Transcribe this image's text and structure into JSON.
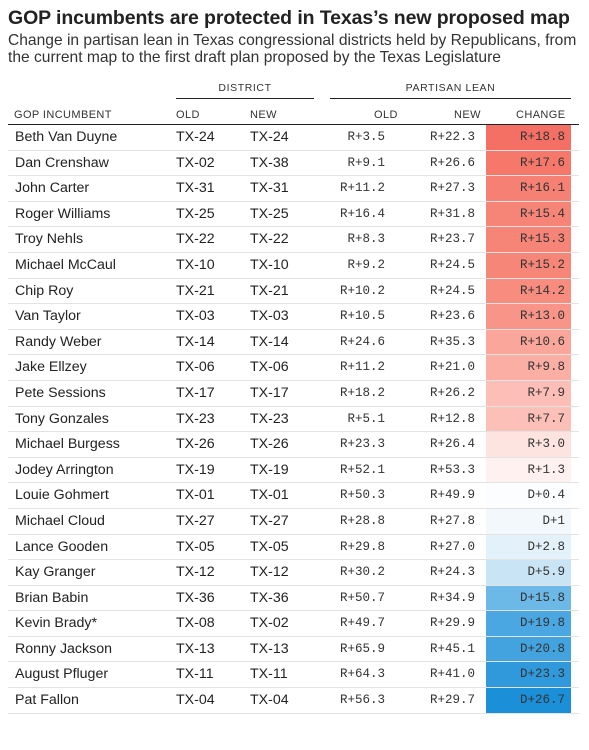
{
  "title": "GOP incumbents are protected in Texas’s new proposed map",
  "subtitle": "Change in partisan lean in Texas congressional districts held by Republicans, from the current map to the first draft plan proposed by the Texas Legislature",
  "groups": {
    "district": "DISTRICT",
    "partisan_lean": "PARTISAN LEAN"
  },
  "columns": {
    "incumbent": "GOP INCUMBENT",
    "old_district": "OLD",
    "new_district": "NEW",
    "old_lean": "OLD",
    "new_lean": "NEW",
    "change": "CHANGE"
  },
  "colors": {
    "strong_red": "#f47064",
    "strong_blue": "#1b8fd8"
  },
  "rows": [
    {
      "name": "Beth Van Duyne",
      "old_district": "TX-24",
      "new_district": "TX-24",
      "old_lean": "R+3.5",
      "new_lean": "R+22.3",
      "change": "R+18.8",
      "change_color": "#f47064"
    },
    {
      "name": "Dan Crenshaw",
      "old_district": "TX-02",
      "new_district": "TX-38",
      "old_lean": "R+9.1",
      "new_lean": "R+26.6",
      "change": "R+17.6",
      "change_color": "#f5786b"
    },
    {
      "name": "John Carter",
      "old_district": "TX-31",
      "new_district": "TX-31",
      "old_lean": "R+11.2",
      "new_lean": "R+27.3",
      "change": "R+16.1",
      "change_color": "#f68073"
    },
    {
      "name": "Roger Williams",
      "old_district": "TX-25",
      "new_district": "TX-25",
      "old_lean": "R+16.4",
      "new_lean": "R+31.8",
      "change": "R+15.4",
      "change_color": "#f68577"
    },
    {
      "name": "Troy Nehls",
      "old_district": "TX-22",
      "new_district": "TX-22",
      "old_lean": "R+8.3",
      "new_lean": "R+23.7",
      "change": "R+15.3",
      "change_color": "#f68577"
    },
    {
      "name": "Michael McCaul",
      "old_district": "TX-10",
      "new_district": "TX-10",
      "old_lean": "R+9.2",
      "new_lean": "R+24.5",
      "change": "R+15.2",
      "change_color": "#f68678"
    },
    {
      "name": "Chip Roy",
      "old_district": "TX-21",
      "new_district": "TX-21",
      "old_lean": "R+10.2",
      "new_lean": "R+24.5",
      "change": "R+14.2",
      "change_color": "#f78c7f"
    },
    {
      "name": "Van Taylor",
      "old_district": "TX-03",
      "new_district": "TX-03",
      "old_lean": "R+10.5",
      "new_lean": "R+23.6",
      "change": "R+13.0",
      "change_color": "#f89588"
    },
    {
      "name": "Randy Weber",
      "old_district": "TX-14",
      "new_district": "TX-14",
      "old_lean": "R+24.6",
      "new_lean": "R+35.3",
      "change": "R+10.6",
      "change_color": "#faa69b"
    },
    {
      "name": "Jake Ellzey",
      "old_district": "TX-06",
      "new_district": "TX-06",
      "old_lean": "R+11.2",
      "new_lean": "R+21.0",
      "change": "R+9.8",
      "change_color": "#fbaea4"
    },
    {
      "name": "Pete Sessions",
      "old_district": "TX-17",
      "new_district": "TX-17",
      "old_lean": "R+18.2",
      "new_lean": "R+26.2",
      "change": "R+7.9",
      "change_color": "#fcbeb6"
    },
    {
      "name": "Tony Gonzales",
      "old_district": "TX-23",
      "new_district": "TX-23",
      "old_lean": "R+5.1",
      "new_lean": "R+12.8",
      "change": "R+7.7",
      "change_color": "#fcc0b8"
    },
    {
      "name": "Michael Burgess",
      "old_district": "TX-26",
      "new_district": "TX-26",
      "old_lean": "R+23.3",
      "new_lean": "R+26.4",
      "change": "R+3.0",
      "change_color": "#fde4e0"
    },
    {
      "name": "Jodey Arrington",
      "old_district": "TX-19",
      "new_district": "TX-19",
      "old_lean": "R+52.1",
      "new_lean": "R+53.3",
      "change": "R+1.3",
      "change_color": "#fef1ef"
    },
    {
      "name": "Louie Gohmert",
      "old_district": "TX-01",
      "new_district": "TX-01",
      "old_lean": "R+50.3",
      "new_lean": "R+49.9",
      "change": "D+0.4",
      "change_color": "#fbfdfe"
    },
    {
      "name": "Michael Cloud",
      "old_district": "TX-27",
      "new_district": "TX-27",
      "old_lean": "R+28.8",
      "new_lean": "R+27.8",
      "change": "D+1",
      "change_color": "#f2f8fc"
    },
    {
      "name": "Lance Gooden",
      "old_district": "TX-05",
      "new_district": "TX-05",
      "old_lean": "R+29.8",
      "new_lean": "R+27.0",
      "change": "D+2.8",
      "change_color": "#e3f1fa"
    },
    {
      "name": "Kay Granger",
      "old_district": "TX-12",
      "new_district": "TX-12",
      "old_lean": "R+30.2",
      "new_lean": "R+24.3",
      "change": "D+5.9",
      "change_color": "#c9e4f5"
    },
    {
      "name": "Brian Babin",
      "old_district": "TX-36",
      "new_district": "TX-36",
      "old_lean": "R+50.7",
      "new_lean": "R+34.9",
      "change": "D+15.8",
      "change_color": "#6cb8e6"
    },
    {
      "name": "Kevin Brady*",
      "old_district": "TX-08",
      "new_district": "TX-02",
      "old_lean": "R+49.7",
      "new_lean": "R+29.9",
      "change": "D+19.8",
      "change_color": "#4aa7e1"
    },
    {
      "name": "Ronny Jackson",
      "old_district": "TX-13",
      "new_district": "TX-13",
      "old_lean": "R+65.9",
      "new_lean": "R+45.1",
      "change": "D+20.8",
      "change_color": "#43a3df"
    },
    {
      "name": "August Pfluger",
      "old_district": "TX-11",
      "new_district": "TX-11",
      "old_lean": "R+64.3",
      "new_lean": "R+41.0",
      "change": "D+23.3",
      "change_color": "#3099dc"
    },
    {
      "name": "Pat Fallon",
      "old_district": "TX-04",
      "new_district": "TX-04",
      "old_lean": "R+56.3",
      "new_lean": "R+29.7",
      "change": "D+26.7",
      "change_color": "#1b8fd8"
    }
  ]
}
